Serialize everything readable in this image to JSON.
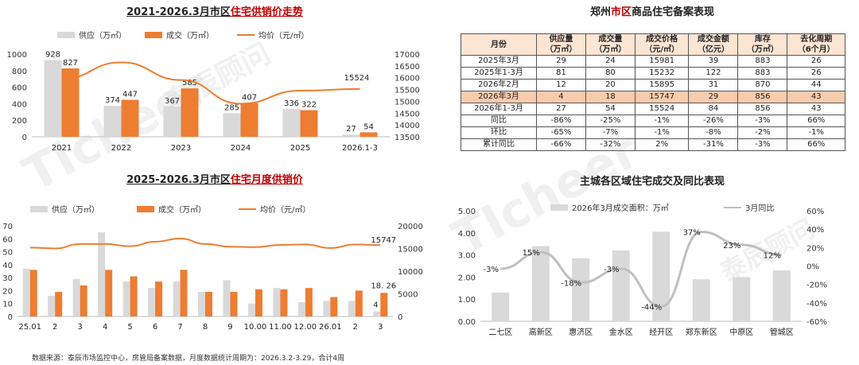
{
  "watermark": {
    "latin": "TIcheer",
    "cn": "泰辰顾问"
  },
  "panel1": {
    "title_pre": "2021-2026.3月市区",
    "title_red": "住宅供销价走势"
  },
  "panel2": {
    "title_pre": "郑州",
    "title_red": "市区",
    "title_post": "商品住宅备案表现"
  },
  "panel3": {
    "title_pre": "2025-2026.3月市区",
    "title_red": "住宅月度供销价"
  },
  "panel4": {
    "title": "主城各区域住宅成交及同比表现"
  },
  "footer": "数据来源：泰辰市场监控中心，房管局备案数据，月度数据统计周期为：2026.3.2-3.29，合计4周",
  "table": {
    "headers": [
      [
        "月份"
      ],
      [
        "供应量",
        "（万㎡）"
      ],
      [
        "成交量",
        "（万㎡）"
      ],
      [
        "成交价格",
        "（元/㎡）"
      ],
      [
        "成交金额",
        "（亿元）"
      ],
      [
        "库存",
        "（万㎡）"
      ],
      [
        "去化周期",
        "（6个月）"
      ]
    ],
    "rows": [
      [
        "2025年3月",
        "29",
        "24",
        "15981",
        "39",
        "883",
        "26"
      ],
      [
        "2025年1-3月",
        "81",
        "80",
        "15232",
        "122",
        "883",
        "26"
      ],
      [
        "2026年2月",
        "12",
        "20",
        "15895",
        "31",
        "870",
        "44"
      ],
      [
        "2026年3月",
        "4",
        "18",
        "15747",
        "29",
        "856",
        "43"
      ],
      [
        "2026年1-3月",
        "27",
        "54",
        "15524",
        "84",
        "856",
        "43"
      ],
      [
        "同比",
        "-86%",
        "-25%",
        "-1%",
        "-26%",
        "-3%",
        "66%"
      ],
      [
        "环比",
        "-65%",
        "-7%",
        "-1%",
        "-8%",
        "-2%",
        "-1%"
      ],
      [
        "累计同比",
        "-66%",
        "-32%",
        "2%",
        "-31%",
        "-3%",
        "66%"
      ]
    ],
    "highlight_row": 3
  },
  "chart_data": [
    {
      "type": "bar",
      "title": "2021-2026.3月市区住宅供销价走势",
      "categories": [
        "2021",
        "2022",
        "2023",
        "2024",
        "2025",
        "2026.1-3"
      ],
      "series": [
        {
          "name": "供应（万㎡）",
          "kind": "bar",
          "color": "#d9d9d9",
          "values": [
            928,
            374,
            367,
            285,
            336,
            27
          ]
        },
        {
          "name": "成交（万㎡）",
          "kind": "bar",
          "color": "#ed7d31",
          "values": [
            827,
            447,
            585,
            407,
            322,
            54
          ]
        },
        {
          "name": "均价（元/㎡）",
          "kind": "line",
          "axis": "right",
          "color": "#ed7d31",
          "values": [
            15950,
            16650,
            15900,
            14900,
            15450,
            15524
          ]
        }
      ],
      "data_labels": {
        "line_last": "15524"
      },
      "y_left": {
        "min": 0,
        "max": 1000,
        "ticks": [
          "0",
          "200",
          "400",
          "600",
          "800",
          "1000"
        ]
      },
      "y_right": {
        "min": 13500,
        "max": 17000,
        "ticks": [
          "13500",
          "14000",
          "14500",
          "15000",
          "15500",
          "16000",
          "16500",
          "17000"
        ]
      },
      "legend": "top"
    },
    {
      "type": "bar",
      "title": "2025-2026.3月市区住宅月度供销价",
      "categories": [
        "25.01",
        "2",
        "3",
        "4",
        "5",
        "6",
        "7",
        "8",
        "9",
        "10.00",
        "11.00",
        "12.00",
        "26.01",
        "2",
        "3"
      ],
      "series": [
        {
          "name": "供应（万㎡）",
          "kind": "bar",
          "color": "#d9d9d9",
          "values": [
            37,
            16,
            29,
            65,
            27,
            22,
            27,
            19,
            28,
            10,
            22,
            11,
            12,
            12,
            4
          ]
        },
        {
          "name": "成交（万㎡）",
          "kind": "bar",
          "color": "#ed7d31",
          "values": [
            36,
            19,
            24,
            36,
            31,
            27,
            36,
            19,
            19,
            21,
            21,
            22,
            15,
            20,
            18.26
          ]
        },
        {
          "name": "均价（元/㎡）",
          "kind": "line",
          "axis": "right",
          "color": "#ed7d31",
          "values": [
            15200,
            15000,
            15981,
            16000,
            15500,
            16500,
            17200,
            16000,
            15400,
            15300,
            15800,
            15900,
            15100,
            15895,
            15747
          ]
        }
      ],
      "data_labels": {
        "line_last": "15747",
        "bar_last": "18. 26",
        "supply_last": "4"
      },
      "y_left": {
        "min": 0,
        "max": 70,
        "ticks": [
          "0",
          "10",
          "20",
          "30",
          "40",
          "50",
          "60",
          "70"
        ]
      },
      "y_right": {
        "min": 0,
        "max": 20000,
        "ticks": [
          "0",
          "5000",
          "10000",
          "15000",
          "20000"
        ]
      },
      "legend": "top"
    },
    {
      "type": "bar",
      "title": "主城各区域住宅成交及同比表现",
      "categories": [
        "二七区",
        "高新区",
        "惠济区",
        "金水区",
        "经开区",
        "郑东新区",
        "中原区",
        "管城区"
      ],
      "series": [
        {
          "name": "2026年3月成交面积：万㎡",
          "kind": "bar",
          "color": "#d9d9d9",
          "values": [
            1.3,
            3.4,
            2.85,
            3.2,
            4.05,
            1.9,
            2.0,
            2.3
          ]
        },
        {
          "name": "3月同比",
          "kind": "line",
          "axis": "right",
          "color": "#bfbfbf",
          "values": [
            -3,
            15,
            -18,
            -3,
            -44,
            37,
            23,
            12
          ]
        }
      ],
      "data_labels": {
        "line": [
          "-3%",
          "15%",
          "-18%",
          "-3%",
          "-44%",
          "37%",
          "23%",
          "12%"
        ]
      },
      "y_left": {
        "min": 0,
        "max": 5,
        "ticks": [
          "0.00",
          "1.00",
          "2.00",
          "3.00",
          "4.00",
          "5.00"
        ]
      },
      "y_right": {
        "min": -60,
        "max": 60,
        "ticks": [
          "-60%",
          "-40%",
          "-20%",
          "0%",
          "20%",
          "40%",
          "60%"
        ]
      },
      "legend": "top"
    }
  ]
}
